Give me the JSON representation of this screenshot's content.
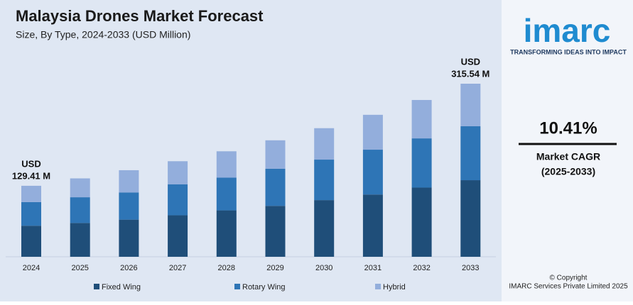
{
  "chart_data": {
    "type": "stacked-bar",
    "title": "Malaysia Drones Market Forecast",
    "subtitle": "Size, By Type, 2024-2033 (USD Million)",
    "categories": [
      "2024",
      "2025",
      "2026",
      "2027",
      "2028",
      "2029",
      "2030",
      "2031",
      "2032",
      "2033"
    ],
    "series": [
      {
        "name": "Fixed Wing",
        "color": "#1f4e79",
        "values": [
          56.6,
          61.6,
          67.7,
          75.6,
          84.6,
          92.8,
          103.3,
          113.5,
          126.1,
          139.6
        ]
      },
      {
        "name": "Rotary Wing",
        "color": "#2e75b6",
        "values": [
          43.1,
          46.9,
          49.6,
          56.6,
          59.6,
          67.8,
          73.8,
          81.7,
          89.7,
          98.3
        ]
      },
      {
        "name": "Hybrid",
        "color": "#93aedc",
        "values": [
          29.7,
          34.4,
          40.5,
          42.0,
          48.1,
          51.7,
          57.3,
          63.6,
          70.0,
          77.6
        ]
      }
    ],
    "annotations": [
      [
        "USD",
        "129.41 M"
      ],
      [
        "USD",
        "315.54 M"
      ]
    ]
  },
  "sidebar": {
    "logo": "imarc",
    "tagline": "TRANSFORMING IDEAS INTO IMPACT",
    "cagr": "10.41%",
    "cagr_label": "Market CAGR",
    "cagr_period": "(2025-2033)",
    "copyright": [
      "© Copyright",
      "IMARC Services Private Limited 2025"
    ]
  }
}
